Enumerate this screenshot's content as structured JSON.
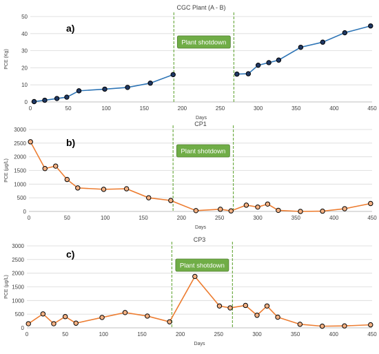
{
  "chart_data": [
    {
      "type": "line",
      "panel_label": "a)",
      "title": "CGC Plant (A - B)",
      "xlabel": "Days",
      "ylabel": "PCE (Kg)",
      "xlim": [
        0,
        450
      ],
      "ylim": [
        0,
        50
      ],
      "xticks": [
        0,
        50,
        100,
        150,
        200,
        250,
        300,
        350,
        400,
        450
      ],
      "yticks": [
        0,
        10,
        20,
        30,
        40,
        50
      ],
      "annotation": "Plant shotdown",
      "shutdown_days": [
        189,
        268
      ],
      "line_color": "#2e75b6",
      "marker_color": "#1f3864",
      "gridlines": "horizontal",
      "series": [
        {
          "segments": [
            {
              "x": [
                5,
                19,
                35,
                48,
                64,
                98,
                128,
                158,
                188
              ],
              "y": [
                0.2,
                1.0,
                2.0,
                2.8,
                6.5,
                7.5,
                8.5,
                11.0,
                16.0
              ]
            },
            {
              "x": [
                272,
                287,
                300,
                314,
                327,
                356,
                385,
                414,
                448
              ],
              "y": [
                16.3,
                16.5,
                21.5,
                23.0,
                24.5,
                32.0,
                35.0,
                40.5,
                44.5
              ]
            }
          ]
        }
      ]
    },
    {
      "type": "line",
      "panel_label": "b)",
      "title": "CP1",
      "xlabel": "Days",
      "ylabel": "PCE (µg/L)",
      "xlim": [
        0,
        450
      ],
      "ylim": [
        0,
        3000
      ],
      "xticks": [
        0,
        50,
        100,
        150,
        200,
        250,
        300,
        350,
        400,
        450
      ],
      "yticks": [
        0,
        500,
        1000,
        1500,
        2000,
        2500,
        3000
      ],
      "annotation": "Plant shotdown",
      "shutdown_days": [
        189,
        268
      ],
      "line_color": "#ed7d31",
      "marker_color": "#f4b183",
      "gridlines": "horizontal",
      "series": [
        {
          "segments": [
            {
              "x": [
                2,
                21,
                35,
                50,
                64,
                98,
                128,
                157,
                186,
                219,
                251,
                265,
                285,
                300,
                313,
                327,
                356,
                385,
                414,
                448
              ],
              "y": [
                2550,
                1570,
                1660,
                1170,
                860,
                810,
                830,
                500,
                400,
                30,
                80,
                20,
                230,
                160,
                270,
                40,
                0,
                10,
                100,
                290
              ]
            }
          ]
        }
      ]
    },
    {
      "type": "line",
      "panel_label": "c)",
      "title": "CP3",
      "xlabel": "Days",
      "ylabel": "PCE (µg/L)",
      "xlim": [
        0,
        450
      ],
      "ylim": [
        0,
        3000
      ],
      "xticks": [
        0,
        50,
        100,
        150,
        200,
        250,
        300,
        350,
        400,
        450
      ],
      "yticks": [
        0,
        500,
        1000,
        1500,
        2000,
        2500,
        3000
      ],
      "annotation": "Plant shotdown",
      "shutdown_days": [
        189,
        268
      ],
      "line_color": "#ed7d31",
      "marker_color": "#f4b183",
      "gridlines": "horizontal",
      "series": [
        {
          "segments": [
            {
              "x": [
                2,
                21,
                35,
                50,
                64,
                98,
                128,
                157,
                186,
                219,
                251,
                265,
                285,
                300,
                313,
                327,
                356,
                385,
                414,
                448
              ],
              "y": [
                150,
                510,
                150,
                410,
                170,
                380,
                560,
                430,
                220,
                1880,
                800,
                730,
                820,
                460,
                800,
                390,
                130,
                60,
                70,
                110
              ]
            }
          ]
        }
      ]
    }
  ]
}
